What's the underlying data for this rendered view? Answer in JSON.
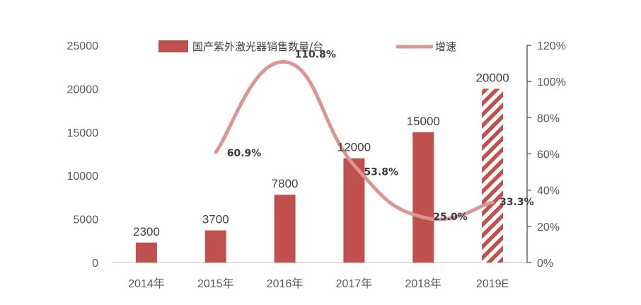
{
  "chart_data": {
    "type": "bar",
    "categories": [
      "2014年",
      "2015年",
      "2016年",
      "2017年",
      "2018年",
      "2019E"
    ],
    "series": [
      {
        "name": "国产紫外激光器销售数量/台",
        "type": "bar",
        "axis": "left",
        "values": [
          2300,
          3700,
          7800,
          12000,
          15000,
          20000
        ],
        "labels": [
          "2300",
          "3700",
          "7800",
          "12000",
          "15000",
          "20000"
        ],
        "color": "#c0504d",
        "estimated_category": "2019E"
      },
      {
        "name": "增速",
        "type": "line",
        "axis": "right",
        "values": [
          null,
          60.9,
          110.8,
          53.8,
          25.0,
          33.3
        ],
        "labels": [
          "",
          "60.9%",
          "110.8%",
          "53.8%",
          "25.0%",
          "33.3%"
        ],
        "color": "#d99694",
        "smooth": true
      }
    ],
    "y_left": {
      "ylim": [
        0,
        25000
      ],
      "ticks": [
        0,
        5000,
        10000,
        15000,
        20000,
        25000
      ],
      "tick_labels": [
        "0",
        "5000",
        "10000",
        "15000",
        "20000",
        "25000"
      ]
    },
    "y_right": {
      "ylim": [
        0,
        120
      ],
      "ticks": [
        0,
        20,
        40,
        60,
        80,
        100,
        120
      ],
      "tick_labels": [
        "0%",
        "20%",
        "40%",
        "60%",
        "80%",
        "100%",
        "120%"
      ]
    },
    "grid": false,
    "legend_position": "top",
    "colors": {
      "bar": "#c0504d",
      "line": "#d99694",
      "axis": "#7f7f7f"
    }
  }
}
